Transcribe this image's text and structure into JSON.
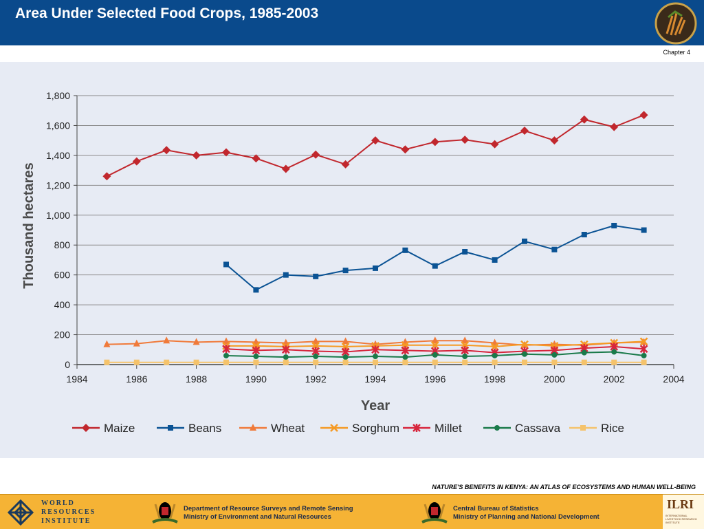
{
  "header": {
    "title": "Area Under Selected Food Crops, 1985-2003",
    "chapter": "Chapter 4"
  },
  "atlas_note": "NATURE'S BENEFITS IN KENYA: AN ATLAS OF ECOSYSTEMS AND HUMAN WELL-BEING",
  "footer": {
    "wri": [
      "WORLD",
      "RESOURCES",
      "INSTITUTE"
    ],
    "org1": [
      "Department of Resource Surveys and Remote Sensing",
      "Ministry of Environment and Natural Resources"
    ],
    "org2": [
      "Central Bureau of Statistics",
      "Ministry of Planning and National Development"
    ],
    "ilri": "ILRI",
    "ilri_sub": "INTERNATIONAL LIVESTOCK RESEARCH INSTITUTE"
  },
  "chart_data": {
    "type": "line",
    "title": "Area Under Selected Food Crops, 1985-2003",
    "xlabel": "Year",
    "ylabel": "Thousand hectares",
    "xlim": [
      1984,
      2004
    ],
    "ylim": [
      0,
      1800
    ],
    "xticks": [
      1984,
      1986,
      1988,
      1990,
      1992,
      1994,
      1996,
      1998,
      2000,
      2002,
      2004
    ],
    "yticks": [
      0,
      200,
      400,
      600,
      800,
      1000,
      1200,
      1400,
      1600,
      1800
    ],
    "ytick_labels": [
      "0",
      "200",
      "400",
      "600",
      "800",
      "1,000",
      "1,200",
      "1,400",
      "1,600",
      "1,800"
    ],
    "grid": "horizontal",
    "legend": "bottom",
    "series": [
      {
        "name": "Maize",
        "color": "#c1272d",
        "marker": "diamond",
        "x": [
          1985,
          1986,
          1987,
          1988,
          1989,
          1990,
          1991,
          1992,
          1993,
          1994,
          1995,
          1996,
          1997,
          1998,
          1999,
          2000,
          2001,
          2002,
          2003
        ],
        "y": [
          1260,
          1360,
          1435,
          1400,
          1420,
          1380,
          1310,
          1405,
          1340,
          1500,
          1440,
          1490,
          1505,
          1475,
          1565,
          1500,
          1640,
          1590,
          1670
        ]
      },
      {
        "name": "Beans",
        "color": "#0b5394",
        "marker": "square",
        "x": [
          1989,
          1990,
          1991,
          1992,
          1993,
          1994,
          1995,
          1996,
          1997,
          1998,
          1999,
          2000,
          2001,
          2002,
          2003
        ],
        "y": [
          670,
          500,
          600,
          590,
          630,
          645,
          765,
          660,
          755,
          700,
          825,
          770,
          870,
          930,
          900
        ]
      },
      {
        "name": "Wheat",
        "color": "#f07a3a",
        "marker": "triangle",
        "x": [
          1985,
          1986,
          1987,
          1988,
          1989,
          1990,
          1991,
          1992,
          1993,
          1994,
          1995,
          1996,
          1997,
          1998,
          1999,
          2000,
          2001,
          2002,
          2003
        ],
        "y": [
          135,
          140,
          160,
          150,
          155,
          150,
          145,
          155,
          155,
          135,
          150,
          160,
          160,
          145,
          130,
          135,
          130,
          145,
          150
        ]
      },
      {
        "name": "Sorghum",
        "color": "#f59a23",
        "marker": "x",
        "x": [
          1989,
          1990,
          1991,
          1992,
          1993,
          1994,
          1995,
          1996,
          1997,
          1998,
          1999,
          2000,
          2001,
          2002,
          2003
        ],
        "y": [
          125,
          125,
          120,
          125,
          120,
          125,
          130,
          130,
          130,
          120,
          135,
          125,
          135,
          145,
          155
        ]
      },
      {
        "name": "Millet",
        "color": "#d7263d",
        "marker": "star",
        "x": [
          1989,
          1990,
          1991,
          1992,
          1993,
          1994,
          1995,
          1996,
          1997,
          1998,
          1999,
          2000,
          2001,
          2002,
          2003
        ],
        "y": [
          105,
          95,
          100,
          90,
          85,
          100,
          95,
          90,
          95,
          80,
          90,
          95,
          110,
          120,
          105
        ]
      },
      {
        "name": "Cassava",
        "color": "#1a7a4a",
        "marker": "circle",
        "x": [
          1989,
          1990,
          1991,
          1992,
          1993,
          1994,
          1995,
          1996,
          1997,
          1998,
          1999,
          2000,
          2001,
          2002,
          2003
        ],
        "y": [
          60,
          55,
          50,
          55,
          50,
          55,
          50,
          65,
          55,
          60,
          70,
          65,
          80,
          85,
          60
        ]
      },
      {
        "name": "Rice",
        "color": "#f5c36b",
        "marker": "square",
        "x": [
          1985,
          1986,
          1987,
          1988,
          1989,
          1990,
          1991,
          1992,
          1993,
          1994,
          1995,
          1996,
          1997,
          1998,
          1999,
          2000,
          2001,
          2002,
          2003
        ],
        "y": [
          15,
          15,
          15,
          15,
          15,
          15,
          15,
          15,
          15,
          15,
          15,
          15,
          15,
          15,
          15,
          15,
          15,
          15,
          15
        ]
      }
    ]
  }
}
